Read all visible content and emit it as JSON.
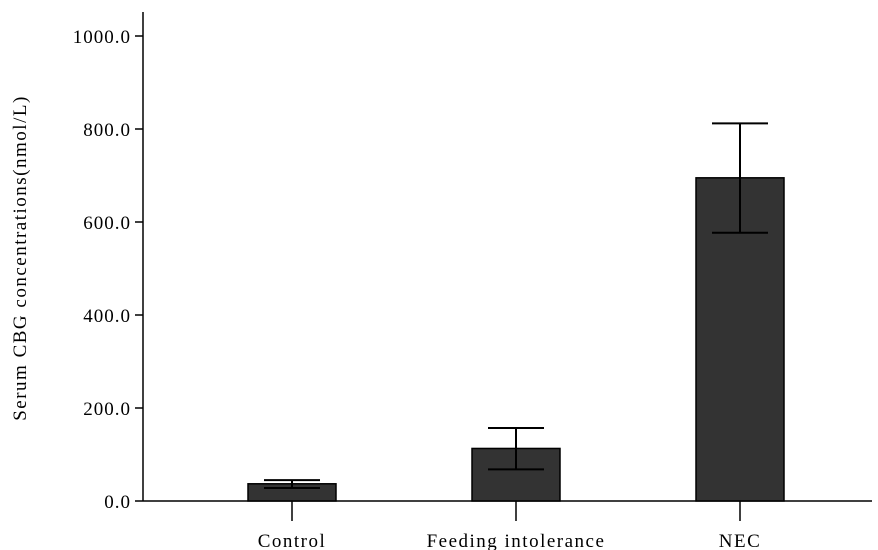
{
  "chart_data": {
    "type": "bar",
    "title": "",
    "xlabel": "",
    "ylabel": "Serum CBG concentrations(nmol/L)",
    "ylim": [
      0,
      1000
    ],
    "yticks": [
      0,
      200,
      400,
      600,
      800,
      1000
    ],
    "ytick_labels": [
      "0.0",
      "200.0",
      "400.0",
      "600.0",
      "800.0",
      "1000.0"
    ],
    "categories": [
      "Control",
      "Feeding intolerance",
      "NEC"
    ],
    "values": [
      37,
      113,
      695
    ],
    "error_bars": {
      "lower": [
        28,
        68,
        577
      ],
      "upper": [
        45,
        157,
        812
      ]
    },
    "grid": false,
    "legend": false,
    "colors": {
      "bar_fill": "#333333",
      "bar_stroke": "#000000",
      "axis": "#000000",
      "error_bar": "#000000"
    }
  }
}
